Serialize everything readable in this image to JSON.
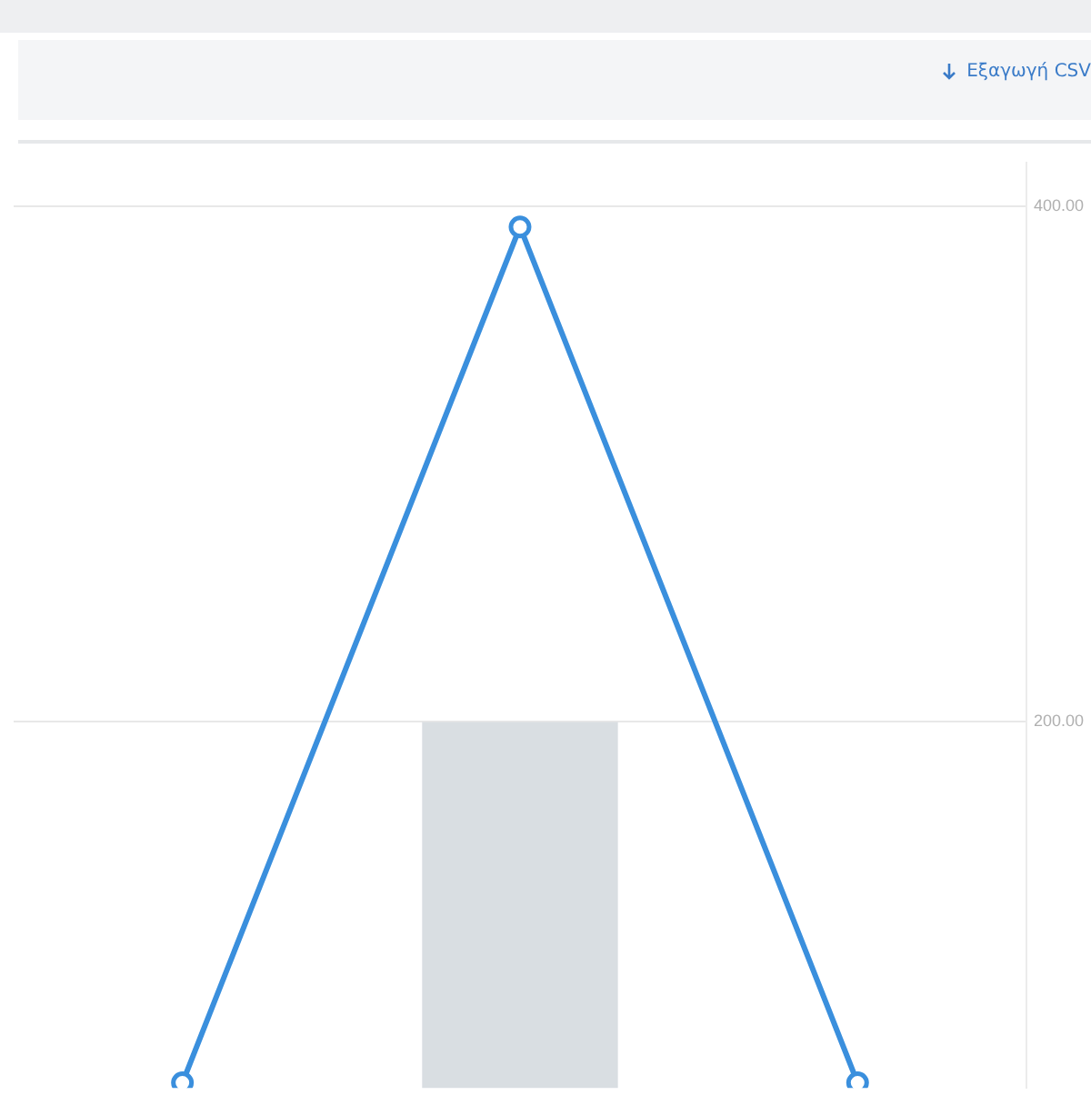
{
  "chart_data": {
    "type": "bar",
    "categories": [
      null,
      null,
      null
    ],
    "series": [
      {
        "color": "#d9dee2",
        "values": [
          null,
          200,
          null
        ]
      },
      {
        "type": "line",
        "color": "#3a8fdd",
        "values": [
          60,
          392,
          60
        ]
      }
    ],
    "ylim": [
      58,
      417
    ],
    "yticks": [
      {
        "value": 400,
        "label": "400.00"
      },
      {
        "value": 200,
        "label": "200.00"
      }
    ],
    "grid": "y",
    "legend": false,
    "marker": "circle",
    "line_style": "solid",
    "annotations": [
      "Εξαγωγή CSV"
    ]
  }
}
